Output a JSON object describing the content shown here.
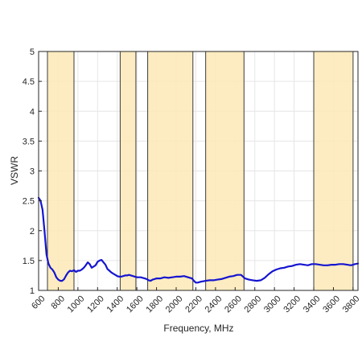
{
  "chart_data": {
    "type": "line",
    "title": "",
    "xlabel": "Frequency, MHz",
    "ylabel": "VSWR",
    "xlim": [
      600,
      3850
    ],
    "ylim": [
      1,
      5
    ],
    "xticks": [
      600,
      800,
      1000,
      1200,
      1400,
      1600,
      1800,
      2000,
      2200,
      2400,
      2600,
      2800,
      3000,
      3200,
      3400,
      3600,
      3800
    ],
    "yticks": [
      1,
      1.5,
      2,
      2.5,
      3,
      3.5,
      4,
      4.5,
      5
    ],
    "ytick_labels": [
      "1",
      "1.5",
      "2",
      "2.5",
      "3",
      "3.5",
      "4",
      "4.5",
      "5"
    ],
    "x_tick_rotation_deg": -45,
    "grid": true,
    "box": true,
    "highlight_bands": [
      {
        "from": 690,
        "to": 960
      },
      {
        "from": 1430,
        "to": 1590
      },
      {
        "from": 1710,
        "to": 2170
      },
      {
        "from": 2300,
        "to": 2690
      },
      {
        "from": 3400,
        "to": 3800
      }
    ],
    "colors": {
      "line": "#1515d0",
      "band_fill": "#fde9b6",
      "band_edge": "#3a3a3a",
      "grid": "#e6e6e6",
      "axes": "#262626"
    },
    "series": [
      {
        "name": "",
        "x": [
          600,
          620,
          640,
          660,
          680,
          700,
          720,
          740,
          760,
          780,
          800,
          820,
          840,
          860,
          880,
          900,
          920,
          940,
          960,
          980,
          1000,
          1020,
          1040,
          1060,
          1080,
          1100,
          1120,
          1140,
          1160,
          1180,
          1200,
          1220,
          1240,
          1260,
          1280,
          1300,
          1320,
          1340,
          1360,
          1380,
          1400,
          1420,
          1440,
          1460,
          1480,
          1500,
          1520,
          1540,
          1560,
          1580,
          1600,
          1620,
          1640,
          1660,
          1680,
          1700,
          1720,
          1740,
          1760,
          1780,
          1800,
          1840,
          1880,
          1920,
          1960,
          2000,
          2040,
          2080,
          2120,
          2160,
          2180,
          2200,
          2220,
          2240,
          2260,
          2300,
          2340,
          2380,
          2420,
          2460,
          2500,
          2540,
          2580,
          2620,
          2660,
          2700,
          2740,
          2780,
          2820,
          2860,
          2900,
          2940,
          2980,
          3020,
          3060,
          3100,
          3140,
          3180,
          3220,
          3260,
          3300,
          3340,
          3380,
          3420,
          3460,
          3500,
          3540,
          3580,
          3620,
          3660,
          3700,
          3740,
          3780,
          3820,
          3850
        ],
        "values": [
          2.55,
          2.5,
          2.35,
          2.0,
          1.6,
          1.45,
          1.38,
          1.35,
          1.3,
          1.22,
          1.18,
          1.16,
          1.16,
          1.19,
          1.25,
          1.3,
          1.33,
          1.32,
          1.34,
          1.31,
          1.33,
          1.33,
          1.35,
          1.38,
          1.42,
          1.47,
          1.44,
          1.38,
          1.4,
          1.42,
          1.48,
          1.5,
          1.51,
          1.47,
          1.43,
          1.36,
          1.33,
          1.3,
          1.28,
          1.26,
          1.24,
          1.23,
          1.23,
          1.24,
          1.25,
          1.25,
          1.26,
          1.25,
          1.24,
          1.23,
          1.22,
          1.22,
          1.22,
          1.21,
          1.2,
          1.19,
          1.17,
          1.16,
          1.18,
          1.19,
          1.2,
          1.2,
          1.22,
          1.21,
          1.22,
          1.23,
          1.23,
          1.24,
          1.22,
          1.2,
          1.16,
          1.13,
          1.13,
          1.14,
          1.15,
          1.16,
          1.17,
          1.17,
          1.18,
          1.19,
          1.21,
          1.23,
          1.24,
          1.26,
          1.26,
          1.2,
          1.18,
          1.17,
          1.16,
          1.17,
          1.21,
          1.27,
          1.32,
          1.35,
          1.37,
          1.38,
          1.4,
          1.41,
          1.43,
          1.44,
          1.43,
          1.42,
          1.44,
          1.44,
          1.43,
          1.42,
          1.42,
          1.43,
          1.43,
          1.44,
          1.44,
          1.43,
          1.42,
          1.44,
          1.45
        ]
      }
    ]
  }
}
